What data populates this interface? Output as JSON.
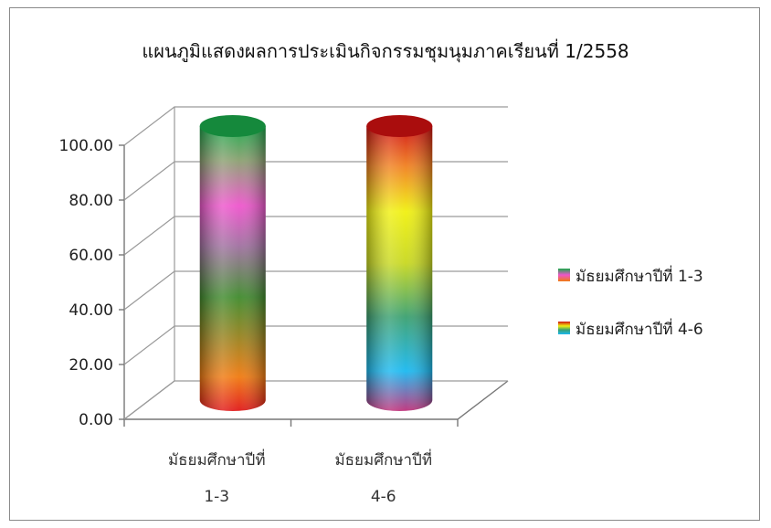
{
  "chart_data": {
    "type": "bar",
    "title": "แผนภูมิแสดงผลการประเมินกิจกรรมชุมนุมภาคเรียนที่  1/2558",
    "categories": [
      [
        "มัธยมศึกษาปีที่",
        "1-3"
      ],
      [
        "มัธยมศึกษาปีที่",
        "4-6"
      ]
    ],
    "series": [
      {
        "name": "มัธยมศึกษาปีที่ 1-3",
        "values": [
          100.0,
          null
        ]
      },
      {
        "name": "มัธยมศึกษาปีที่ 4-6",
        "values": [
          null,
          100.0
        ]
      }
    ],
    "ylim": [
      0,
      100
    ],
    "yticks": [
      "0.00",
      "20.00",
      "40.00",
      "60.00",
      "80.00",
      "100.00"
    ],
    "grid": true,
    "legend": "right",
    "style": "3d-cylinder",
    "colors": {
      "series1": [
        "#e01818",
        "#f07a10",
        "#3f8a2c",
        "#a070a0",
        "#ee55cc",
        "#1aa84a"
      ],
      "series2": [
        "#c0307a",
        "#1ab8f0",
        "#3aa070",
        "#c8d820",
        "#f0f010",
        "#f08020",
        "#d01010"
      ]
    }
  }
}
